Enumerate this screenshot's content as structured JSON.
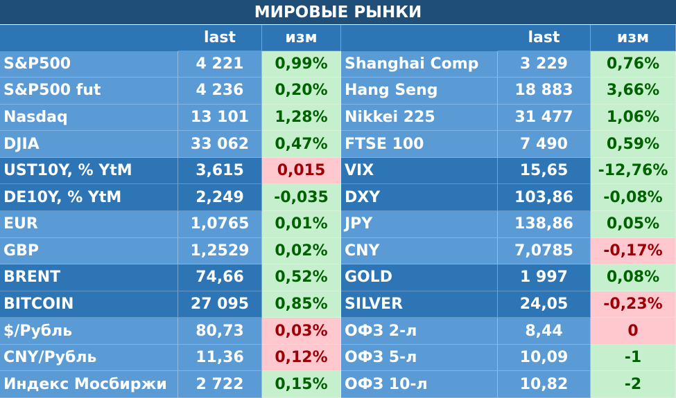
{
  "header": {
    "title": "МИРОВЫЕ РЫНКИ"
  },
  "columns": {
    "last_1": "last",
    "change_1": "изм",
    "last_2": "last",
    "change_2": "изм"
  },
  "tones": {
    "green": {
      "bg": "#c6efce",
      "fg": "#006100"
    },
    "red": {
      "bg": "#ffc7ce",
      "fg": "#9c0006"
    }
  },
  "rows": [
    {
      "bg": "#5b9bd5",
      "left": {
        "name": "S&P500",
        "last": "4 221",
        "change": "0,99%",
        "tone": "green"
      },
      "right": {
        "name": "Shanghai Comp",
        "last": "3 229",
        "change": "0,76%",
        "tone": "green"
      }
    },
    {
      "bg": "#5b9bd5",
      "left": {
        "name": "S&P500 fut",
        "last": "4 236",
        "change": "0,20%",
        "tone": "green"
      },
      "right": {
        "name": "Hang Seng",
        "last": "18 883",
        "change": "3,66%",
        "tone": "green"
      }
    },
    {
      "bg": "#5b9bd5",
      "left": {
        "name": "Nasdaq",
        "last": "13 101",
        "change": "1,28%",
        "tone": "green"
      },
      "right": {
        "name": "Nikkei 225",
        "last": "31 477",
        "change": "1,06%",
        "tone": "green"
      }
    },
    {
      "bg": "#5b9bd5",
      "left": {
        "name": "DJIA",
        "last": "33 062",
        "change": "0,47%",
        "tone": "green"
      },
      "right": {
        "name": "FTSE 100",
        "last": "7 490",
        "change": "0,59%",
        "tone": "green"
      }
    },
    {
      "bg": "#2e75b6",
      "left": {
        "name": "UST10Y, % YtM",
        "last": "3,615",
        "change": "0,015",
        "tone": "red"
      },
      "right": {
        "name": "VIX",
        "last": "15,65",
        "change": "-12,76%",
        "tone": "green"
      }
    },
    {
      "bg": "#2e75b6",
      "left": {
        "name": "DE10Y, % YtM",
        "last": "2,249",
        "change": "-0,035",
        "tone": "green"
      },
      "right": {
        "name": "DXY",
        "last": "103,86",
        "change": "-0,08%",
        "tone": "green"
      }
    },
    {
      "bg": "#5b9bd5",
      "left": {
        "name": "EUR",
        "last": "1,0765",
        "change": "0,01%",
        "tone": "green"
      },
      "right": {
        "name": "JPY",
        "last": "138,86",
        "change": "0,05%",
        "tone": "green"
      }
    },
    {
      "bg": "#5b9bd5",
      "left": {
        "name": "GBP",
        "last": "1,2529",
        "change": "0,02%",
        "tone": "green"
      },
      "right": {
        "name": "CNY",
        "last": "7,0785",
        "change": "-0,17%",
        "tone": "red"
      }
    },
    {
      "bg": "#2e75b6",
      "left": {
        "name": "BRENT",
        "last": "74,66",
        "change": "0,52%",
        "tone": "green"
      },
      "right": {
        "name": "GOLD",
        "last": "1 997",
        "change": "0,08%",
        "tone": "green"
      }
    },
    {
      "bg": "#2e75b6",
      "left": {
        "name": "BITCOIN",
        "last": "27 095",
        "change": "0,85%",
        "tone": "green"
      },
      "right": {
        "name": "SILVER",
        "last": "24,05",
        "change": "-0,23%",
        "tone": "red"
      }
    },
    {
      "bg": "#5b9bd5",
      "left": {
        "name": "$/Рубль",
        "last": "80,73",
        "change": "0,03%",
        "tone": "red"
      },
      "right": {
        "name": "ОФЗ 2-л",
        "last": "8,44",
        "change": "0",
        "tone": "red"
      }
    },
    {
      "bg": "#5b9bd5",
      "left": {
        "name": "CNY/Рубль",
        "last": "11,36",
        "change": "0,12%",
        "tone": "red"
      },
      "right": {
        "name": "ОФЗ 5-л",
        "last": "10,09",
        "change": "-1",
        "tone": "green"
      }
    },
    {
      "bg": "#5b9bd5",
      "left": {
        "name": "Индекс Мосбиржи",
        "last": "2 722",
        "change": "0,15%",
        "tone": "green"
      },
      "right": {
        "name": "ОФЗ 10-л",
        "last": "10,82",
        "change": "-2",
        "tone": "green"
      }
    }
  ]
}
